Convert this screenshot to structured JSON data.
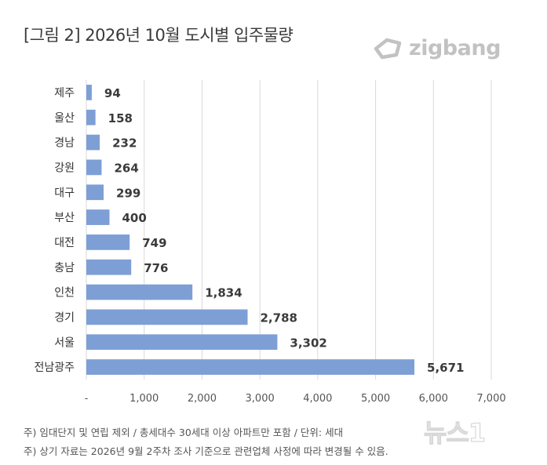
{
  "title": "[그림 2] 2026년 10월 도시별 입주물량",
  "brand": {
    "name": "zigbang",
    "color": "#c2c2c2"
  },
  "watermark": {
    "text": "뉴스1"
  },
  "footnotes": [
    "주) 임대단지 및 연립 제외 / 총세대수 30세대 이상 아파트만 포함 / 단위: 세대",
    "주) 상기 자료는 2026년 9월 2주차 조사 기준으로 관련업체 사정에 따라 변경될 수 있음."
  ],
  "chart_data": {
    "type": "bar",
    "orientation": "horizontal",
    "categories": [
      "제주",
      "울산",
      "경남",
      "강원",
      "대구",
      "부산",
      "대전",
      "충남",
      "인천",
      "경기",
      "서울",
      "전남광주"
    ],
    "values": [
      94,
      158,
      232,
      264,
      299,
      400,
      749,
      776,
      1834,
      2788,
      3302,
      5671
    ],
    "value_labels": [
      "94",
      "158",
      "232",
      "264",
      "299",
      "400",
      "749",
      "776",
      "1,834",
      "2,788",
      "3,302",
      "5,671"
    ],
    "xlim": [
      0,
      7000
    ],
    "x_ticks": [
      0,
      1000,
      2000,
      3000,
      4000,
      5000,
      6000,
      7000
    ],
    "x_tick_labels": [
      "-",
      "1,000",
      "2,000",
      "3,000",
      "4,000",
      "5,000",
      "6,000",
      "7,000"
    ],
    "grid": "vertical",
    "bar_color": "#7d9fd6",
    "grid_color": "#d9d9d9"
  }
}
